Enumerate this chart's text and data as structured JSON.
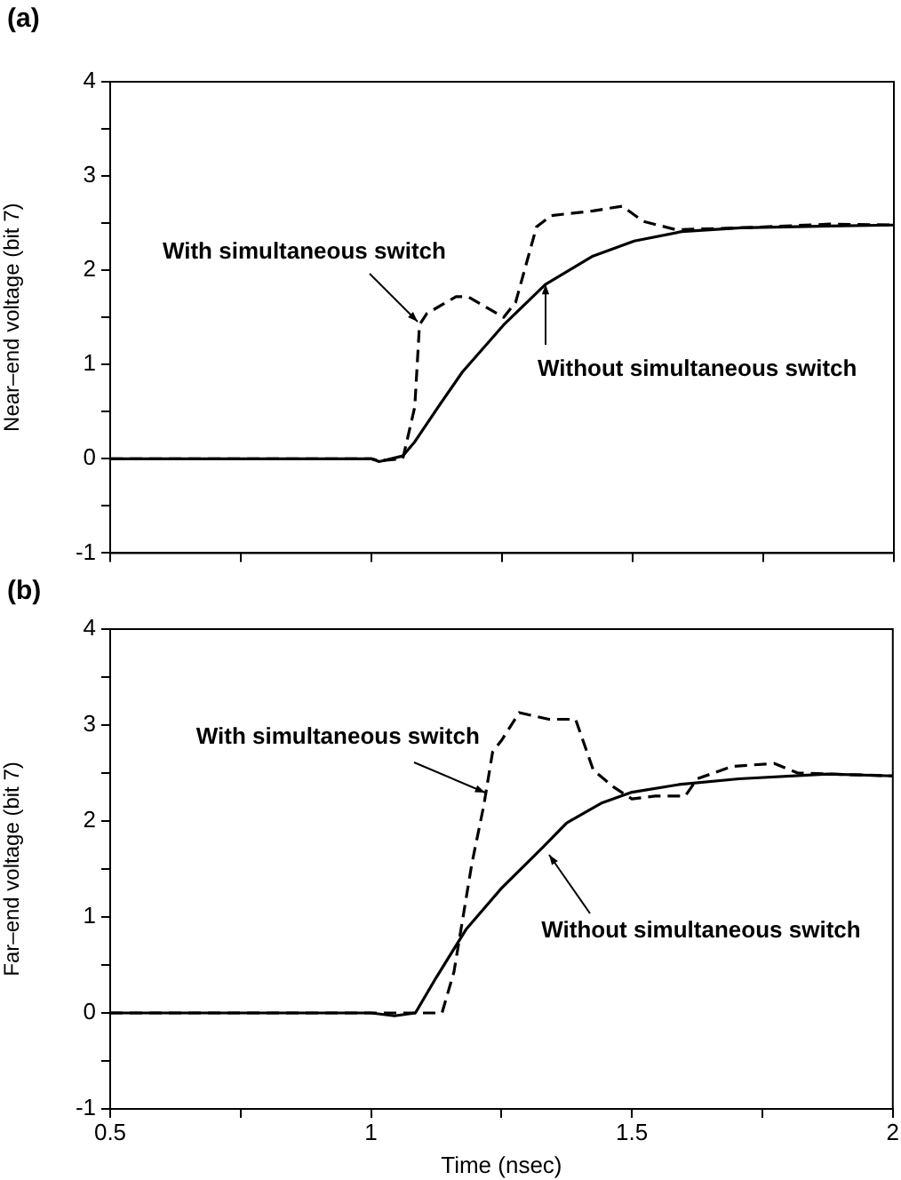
{
  "chart_data": [
    {
      "type": "line",
      "title": "(a)",
      "ylabel": "Near–end voltage (bit 7)",
      "xlim": [
        0.5,
        2
      ],
      "ylim": [
        -1,
        4
      ],
      "xticks": [
        0.5,
        {
          "value": 0.75,
          "label": null
        },
        1,
        {
          "value": 1.25,
          "label": null
        },
        1.5,
        {
          "value": 1.75,
          "label": null
        },
        2
      ],
      "yticks": [
        -1,
        {
          "value": -0.5,
          "label": null
        },
        0,
        {
          "value": 0.5,
          "label": null
        },
        1,
        {
          "value": 1.5,
          "label": null
        },
        2,
        {
          "value": 2.5,
          "label": null
        },
        3,
        {
          "value": 3.5,
          "label": null
        },
        4
      ],
      "tick_labels": "y",
      "grid": false,
      "legend": false,
      "marker": "none",
      "series": [
        {
          "color": "#000000",
          "line_style": "dashed",
          "x": [
            0.5,
            1.0,
            1.015,
            1.06,
            1.083,
            1.092,
            1.106,
            1.162,
            1.185,
            1.253,
            1.276,
            1.316,
            1.344,
            1.424,
            1.48,
            1.52,
            1.583,
            1.707,
            1.878,
            2.0
          ],
          "values": [
            0,
            0,
            -0.02,
            0,
            0.55,
            1.42,
            1.54,
            1.72,
            1.72,
            1.5,
            1.66,
            2.46,
            2.58,
            2.63,
            2.68,
            2.52,
            2.43,
            2.45,
            2.49,
            2.48
          ]
        },
        {
          "color": "#000000",
          "line_style": "solid",
          "x": [
            0.5,
            1.0,
            1.015,
            1.06,
            1.083,
            1.128,
            1.174,
            1.253,
            1.333,
            1.424,
            1.503,
            1.594,
            1.707,
            1.878,
            2.0
          ],
          "values": [
            0,
            0,
            -0.03,
            0.03,
            0.18,
            0.55,
            0.92,
            1.42,
            1.85,
            2.15,
            2.31,
            2.41,
            2.45,
            2.47,
            2.48
          ]
        }
      ],
      "annotations": [
        {
          "text": "With simultaneous switch",
          "x": 1.09,
          "y": 1.45
        },
        {
          "text": "Without simultaneous switch",
          "x": 1.335,
          "y": 1.85
        }
      ]
    },
    {
      "type": "line",
      "title": "(b)",
      "xlabel": "Time (nsec)",
      "ylabel": "Far–end voltage (bit 7)",
      "xlim": [
        0.5,
        2
      ],
      "ylim": [
        -1,
        4
      ],
      "xticks": [
        0.5,
        {
          "value": 0.75,
          "label": null
        },
        1,
        {
          "value": 1.25,
          "label": null
        },
        1.5,
        {
          "value": 1.75,
          "label": null
        },
        2
      ],
      "yticks": [
        -1,
        {
          "value": -0.5,
          "label": null
        },
        0,
        {
          "value": 0.5,
          "label": null
        },
        1,
        {
          "value": 1.5,
          "label": null
        },
        2,
        {
          "value": 2.5,
          "label": null
        },
        3,
        {
          "value": 3.5,
          "label": null
        },
        4
      ],
      "grid": false,
      "legend": false,
      "marker": "none",
      "series": [
        {
          "color": "#000000",
          "line_style": "dashed",
          "x": [
            0.5,
            1.136,
            1.159,
            1.193,
            1.216,
            1.233,
            1.25,
            1.284,
            1.341,
            1.392,
            1.426,
            1.466,
            1.5,
            1.545,
            1.602,
            1.625,
            1.693,
            1.773,
            1.818,
            2.0
          ],
          "values": [
            0,
            0,
            0.43,
            1.55,
            2.16,
            2.72,
            2.84,
            3.13,
            3.06,
            3.06,
            2.53,
            2.35,
            2.23,
            2.26,
            2.26,
            2.44,
            2.57,
            2.6,
            2.5,
            2.47
          ]
        },
        {
          "color": "#000000",
          "line_style": "solid",
          "x": [
            0.5,
            1.0,
            1.045,
            1.085,
            1.125,
            1.182,
            1.25,
            1.33,
            1.375,
            1.443,
            1.5,
            1.59,
            1.705,
            1.875,
            2.0
          ],
          "values": [
            0,
            0,
            -0.03,
            0,
            0.37,
            0.87,
            1.3,
            1.73,
            1.98,
            2.19,
            2.3,
            2.38,
            2.44,
            2.49,
            2.47
          ]
        }
      ],
      "annotations": [
        {
          "text": "With simultaneous switch",
          "x": 1.22,
          "y": 2.3
        },
        {
          "text": "Without simultaneous switch",
          "x": 1.34,
          "y": 1.65
        }
      ]
    }
  ]
}
